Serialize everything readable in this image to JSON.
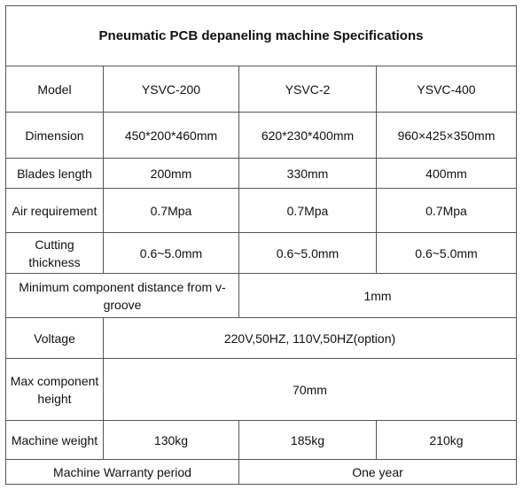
{
  "title": "Pneumatic PCB depaneling machine Specifications",
  "rows": {
    "model": {
      "label": "Model",
      "values": [
        "YSVC-200",
        "YSVC-2",
        "YSVC-400"
      ]
    },
    "dimension": {
      "label": "Dimension",
      "values": [
        "450*200*460mm",
        "620*230*400mm",
        "960×425×350mm"
      ]
    },
    "blades_length": {
      "label": "Blades length",
      "values": [
        "200mm",
        "330mm",
        "400mm"
      ]
    },
    "air_requirement": {
      "label": "Air requirement",
      "values": [
        "0.7Mpa",
        "0.7Mpa",
        "0.7Mpa"
      ]
    },
    "cutting_thickness": {
      "label": "Cutting thickness",
      "values": [
        "0.6~5.0mm",
        "0.6~5.0mm",
        "0.6~5.0mm"
      ]
    },
    "min_component_distance": {
      "label": "Minimum component distance from v-groove",
      "value": "1mm"
    },
    "voltage": {
      "label": "Voltage",
      "value": "220V,50HZ, 110V,50HZ(option)"
    },
    "max_component_height": {
      "label": "Max component height",
      "value": "70mm"
    },
    "machine_weight": {
      "label": "Machine weight",
      "values": [
        "130kg",
        "185kg",
        "210kg"
      ]
    },
    "warranty": {
      "label": "Machine Warranty period",
      "value": "One year"
    }
  }
}
